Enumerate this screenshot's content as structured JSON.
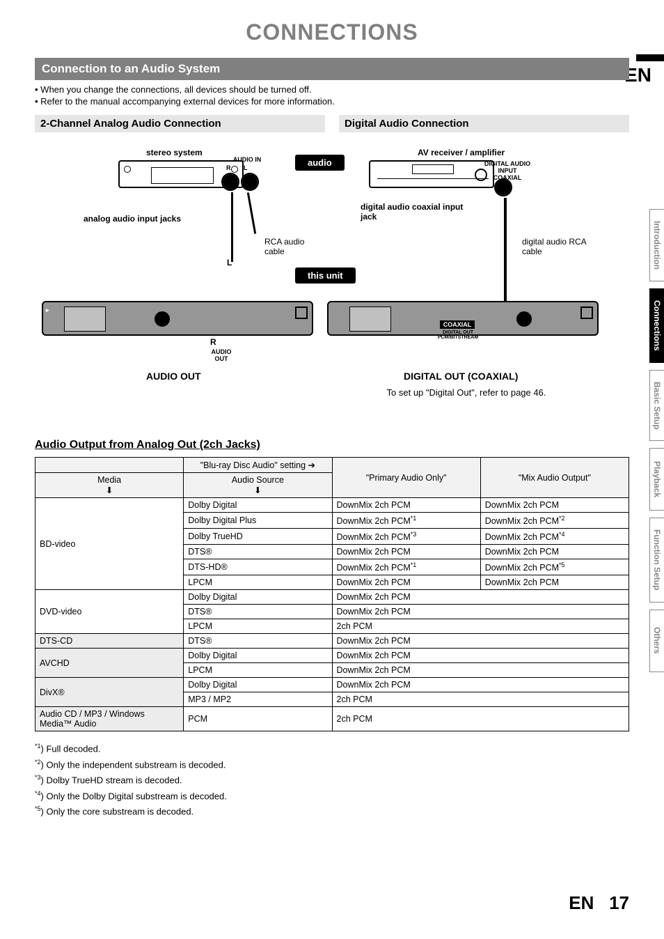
{
  "pageTitle": "CONNECTIONS",
  "langBadge": "EN",
  "sectionBar": "Connection to an Audio System",
  "bullets": [
    "When you change the connections, all devices should be turned off.",
    "Refer to the manual accompanying external devices for more information."
  ],
  "leftHeader": "2-Channel Analog Audio Connection",
  "rightHeader": "Digital Audio Connection",
  "diagram": {
    "stereoSystem": "stereo system",
    "audioIn": "AUDIO IN",
    "R": "R",
    "L": "L",
    "analogJacks": "analog audio input jacks",
    "rcaCable": "RCA audio cable",
    "audioTag": "audio",
    "thisUnit": "this unit",
    "audioOutSmall1": "AUDIO",
    "audioOutSmall2": "OUT",
    "audioOutBig": "AUDIO OUT",
    "avReceiver": "AV receiver / amplifier",
    "digitalInputLabel1": "DIGITAL AUDIO INPUT",
    "digitalInputLabel2": "COAXIAL",
    "digitalJack": "digital audio coaxial input jack",
    "digitalCable": "digital audio RCA cable",
    "coaxialLabel": "COAXIAL",
    "digitalOutSmall1": "DIGITAL OUT",
    "digitalOutSmall2": "PCM/BITSTREAM",
    "digitalOutBig": "DIGITAL OUT (COAXIAL)",
    "digitalNote": "To set up \"Digital Out\", refer to page 46."
  },
  "tableTitle": "Audio Output from Analog Out (2ch Jacks)",
  "tableHeaders": {
    "bdSetting": "\"Blu-ray Disc Audio\" setting ➔",
    "primary": "\"Primary Audio Only\"",
    "mix": "\"Mix Audio Output\"",
    "media": "Media",
    "audioSource": "Audio Source"
  },
  "tableGroups": [
    {
      "media": "BD-video",
      "rows": [
        {
          "src": "Dolby Digital",
          "primary": "DownMix 2ch PCM",
          "mix": "DownMix 2ch PCM"
        },
        {
          "src": "Dolby Digital Plus",
          "primary": "DownMix 2ch PCM",
          "primarySup": "*1",
          "mix": "DownMix 2ch PCM",
          "mixSup": "*2"
        },
        {
          "src": "Dolby TrueHD",
          "primary": "DownMix 2ch PCM",
          "primarySup": "*3",
          "mix": "DownMix 2ch PCM",
          "mixSup": "*4"
        },
        {
          "src": "DTS®",
          "primary": "DownMix 2ch PCM",
          "mix": "DownMix 2ch PCM"
        },
        {
          "src": "DTS-HD®",
          "primary": "DownMix 2ch PCM",
          "primarySup": "*1",
          "mix": "DownMix 2ch PCM",
          "mixSup": "*5"
        },
        {
          "src": "LPCM",
          "primary": "DownMix 2ch PCM",
          "mix": "DownMix 2ch PCM"
        }
      ]
    },
    {
      "media": "DVD-video",
      "rows": [
        {
          "src": "Dolby Digital",
          "merged": "DownMix 2ch PCM"
        },
        {
          "src": "DTS®",
          "merged": "DownMix 2ch PCM"
        },
        {
          "src": "LPCM",
          "merged": "2ch PCM"
        }
      ]
    },
    {
      "media": "DTS-CD",
      "rows": [
        {
          "src": "DTS®",
          "merged": "DownMix 2ch PCM"
        }
      ]
    },
    {
      "media": "AVCHD",
      "rows": [
        {
          "src": "Dolby Digital",
          "merged": "DownMix 2ch PCM"
        },
        {
          "src": "LPCM",
          "merged": "DownMix 2ch PCM"
        }
      ]
    },
    {
      "media": "DivX®",
      "rows": [
        {
          "src": "Dolby Digital",
          "merged": "DownMix 2ch PCM"
        },
        {
          "src": "MP3 / MP2",
          "merged": "2ch PCM"
        }
      ]
    },
    {
      "media": "Audio CD / MP3 / Windows Media™ Audio",
      "rows": [
        {
          "src": "PCM",
          "merged": "2ch PCM"
        }
      ]
    }
  ],
  "footnotes": [
    {
      "sup": "*1",
      "text": ") Full decoded."
    },
    {
      "sup": "*2",
      "text": ") Only the independent substream is decoded."
    },
    {
      "sup": "*3",
      "text": ") Dolby TrueHD stream is decoded."
    },
    {
      "sup": "*4",
      "text": ") Only the Dolby Digital substream is decoded."
    },
    {
      "sup": "*5",
      "text": ") Only the core substream is decoded."
    }
  ],
  "sideTabs": [
    {
      "label": "Introduction",
      "active": false
    },
    {
      "label": "Connections",
      "active": true
    },
    {
      "label": "Basic Setup",
      "active": false
    },
    {
      "label": "Playback",
      "active": false
    },
    {
      "label": "Function Setup",
      "active": false
    },
    {
      "label": "Others",
      "active": false
    }
  ],
  "pageFooter": {
    "lang": "EN",
    "num": "17"
  }
}
